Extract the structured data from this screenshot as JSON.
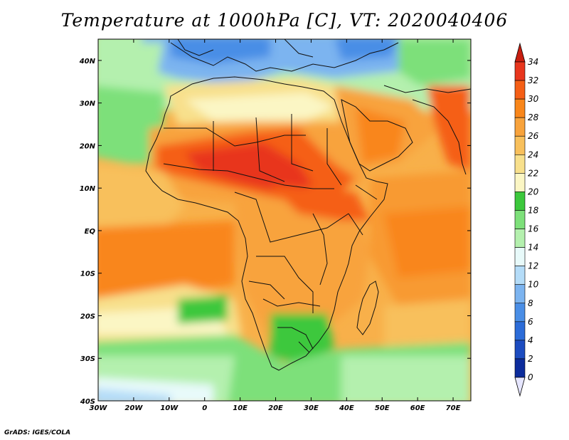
{
  "title": "Temperature at 1000hPa [C], VT: 2020040406",
  "credit": "GrADS: IGES/COLA",
  "map": {
    "lon_range": [
      -30,
      75
    ],
    "lat_range": [
      -40,
      45
    ],
    "lon_ticks": [
      "30W",
      "20W",
      "10W",
      "0",
      "10E",
      "20E",
      "30E",
      "40E",
      "50E",
      "60E",
      "70E"
    ],
    "lat_ticks": [
      "40N",
      "30N",
      "20N",
      "10N",
      "EQ",
      "10S",
      "20S",
      "30S",
      "40S"
    ]
  },
  "colorbar": {
    "labels": [
      "34",
      "32",
      "30",
      "28",
      "26",
      "24",
      "22",
      "20",
      "18",
      "16",
      "14",
      "12",
      "10",
      "8",
      "6",
      "4",
      "2",
      "0"
    ],
    "colors": [
      "#e8361d",
      "#f55f16",
      "#f9861a",
      "#f8a33c",
      "#f8c05c",
      "#f8e08c",
      "#fbf6c4",
      "#3cc83c",
      "#7de07a",
      "#b4f0ae",
      "#e8fafa",
      "#b4dcf8",
      "#7cb4f0",
      "#4a8ee6",
      "#2c6cd8",
      "#1c4cc0",
      "#0c2c9c",
      "#0a1a6e"
    ],
    "top_arrow_color": "#c81e10",
    "bottom_arrow_color": "#e6e6ff"
  },
  "field_colors": {
    "ocean_warm": "#f8b04a",
    "ocean_hot": "#f89a30",
    "ocean_mild": "#f8d880",
    "ocean_cool": "#fcf2b8",
    "cold_green": "#7de07a",
    "green": "#3cc83c",
    "pale": "#b4f0ae",
    "sahel_hot": "#e8361d",
    "sahara_orange": "#f8a33c",
    "med_blue": "#7cb4f0",
    "med_pale": "#b4dcf8",
    "land_orange": "#f5a030",
    "southern_pale_blue": "#e8fafa"
  }
}
